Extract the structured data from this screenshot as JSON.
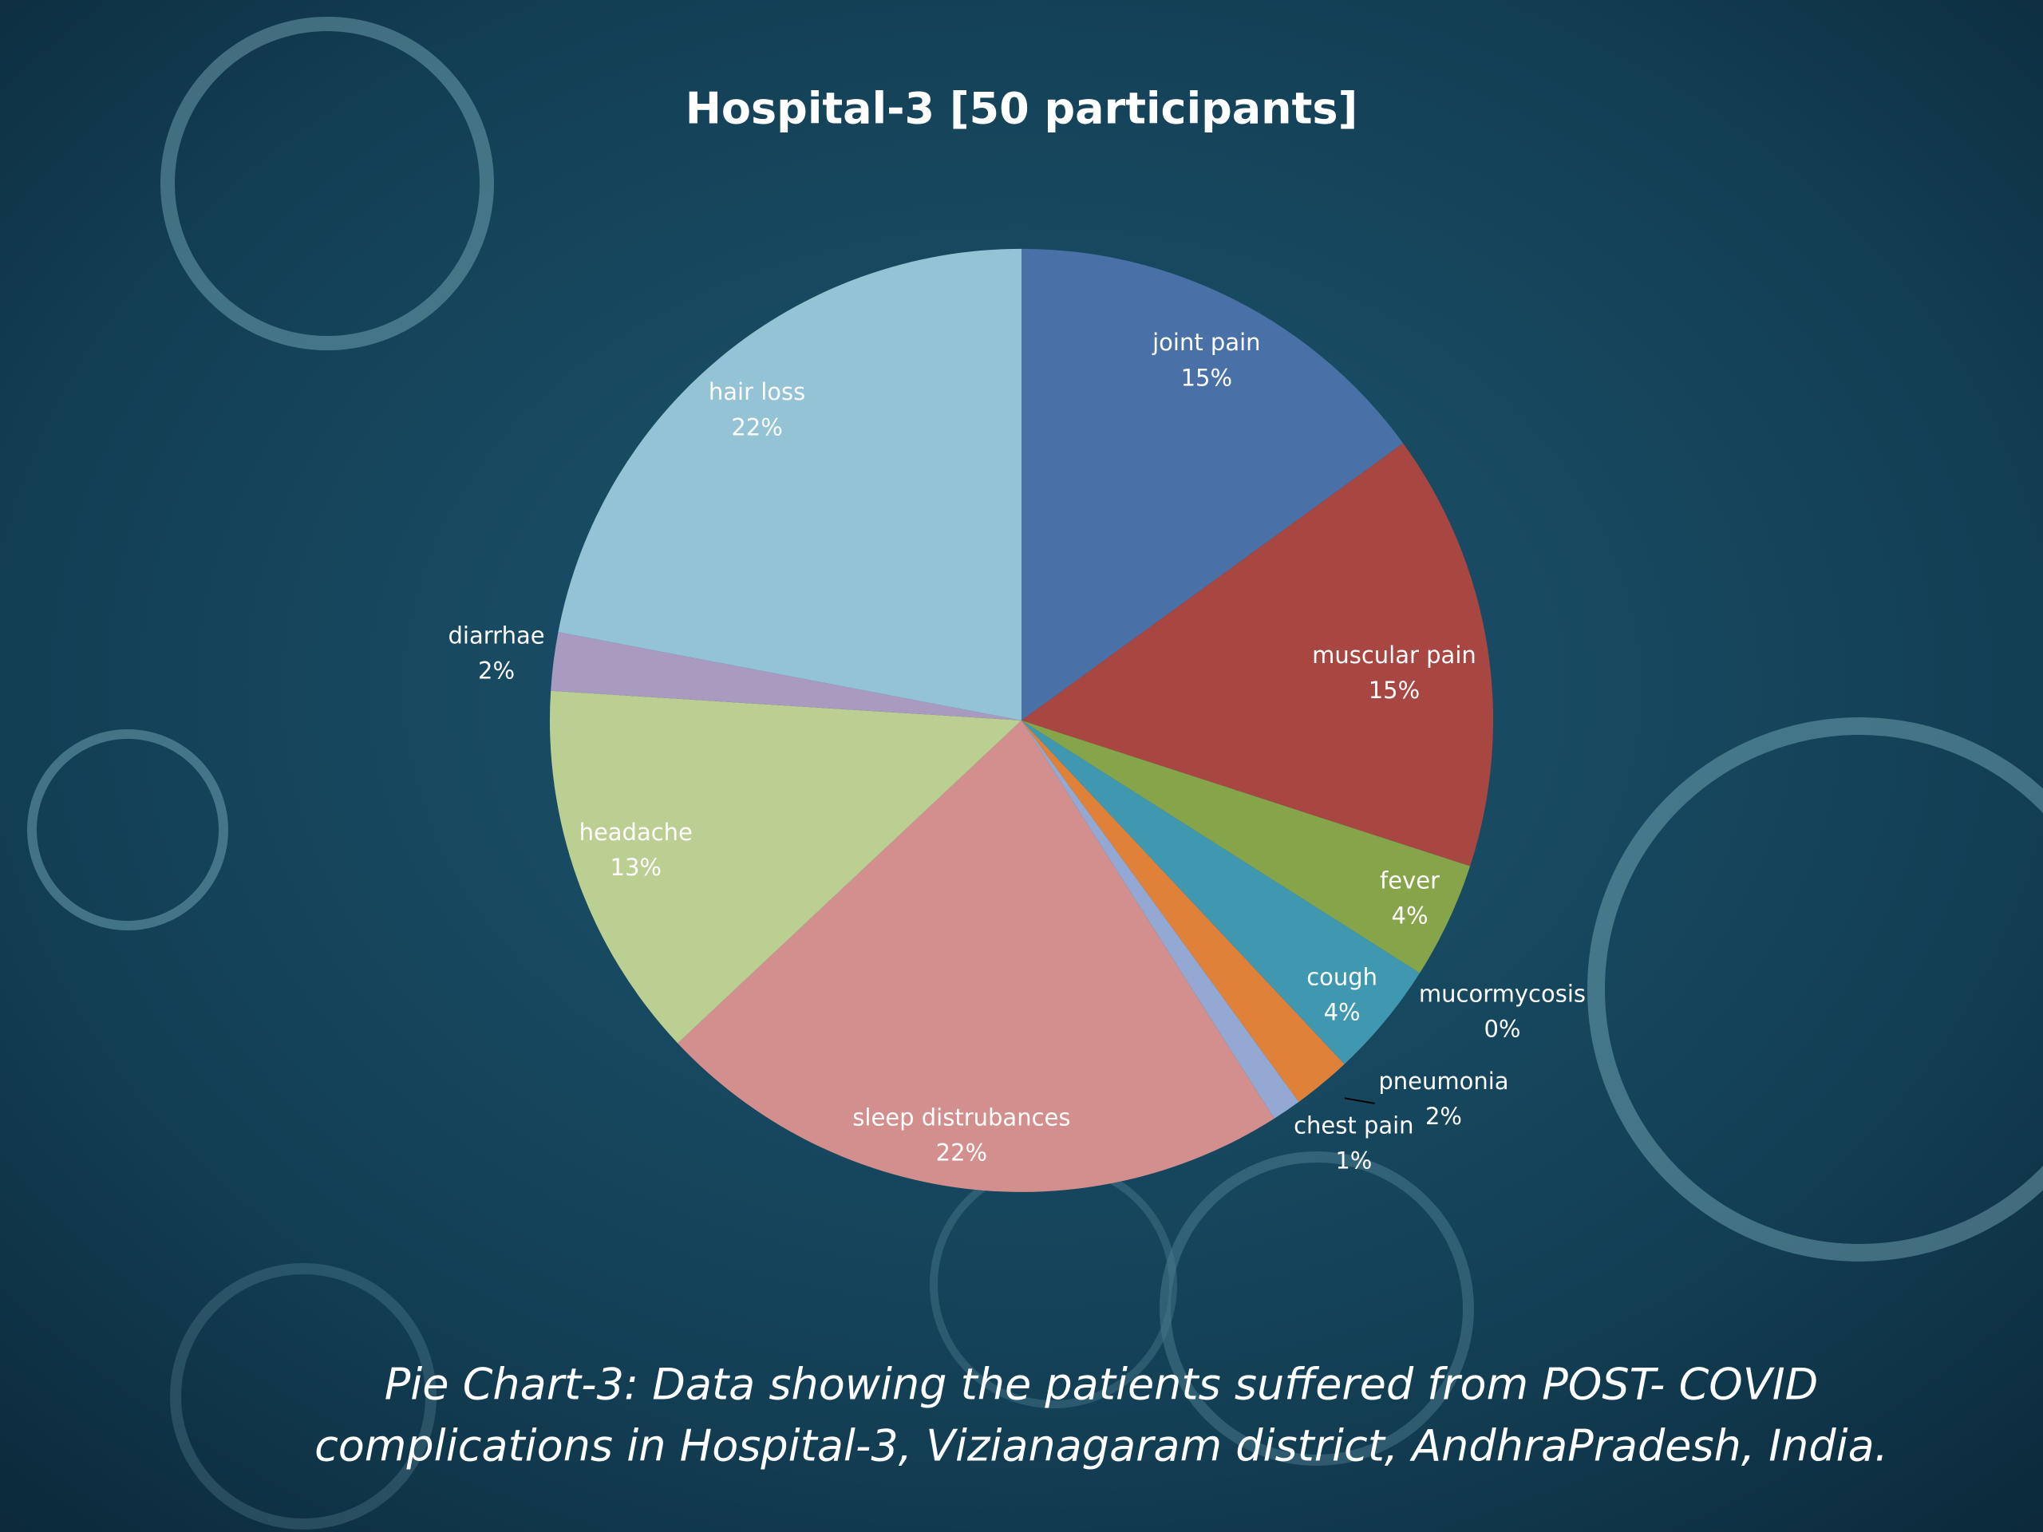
{
  "chart_data": {
    "type": "pie",
    "title": "Hospital-3 [50 participants]",
    "categories": [
      "joint pain",
      "muscular pain",
      "fever",
      "mucormycosis",
      "cough",
      "pneumonia",
      "chest pain",
      "sleep distrubances",
      "headache",
      "diarrhae",
      "hair loss"
    ],
    "values": [
      15,
      15,
      4,
      0,
      4,
      2,
      1,
      22,
      13,
      2,
      22
    ],
    "value_labels": [
      "15%",
      "15%",
      "4%",
      "0%",
      "4%",
      "2%",
      "1%",
      "22%",
      "13%",
      "2%",
      "22%"
    ],
    "colors": [
      "#4a70a8",
      "#a84642",
      "#86a44a",
      "#6b4f8c",
      "#3f98b0",
      "#e0813a",
      "#93a9d4",
      "#d38f8e",
      "#bccf92",
      "#a99bc0",
      "#93c3d4"
    ],
    "caption": [
      "Pie Chart-3: Data showing the patients suffered from POST- COVID",
      "complications in Hospital-3, Vizianagaram district, AndhraPradesh, India."
    ]
  }
}
